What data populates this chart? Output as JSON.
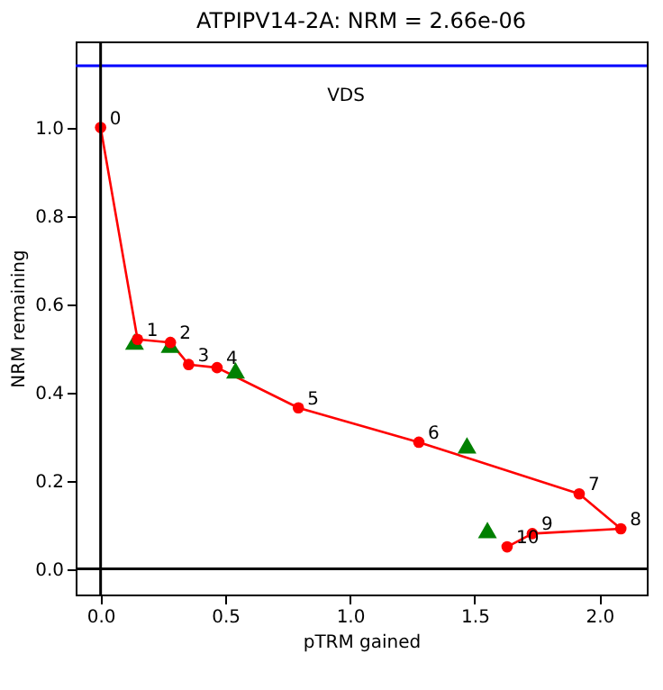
{
  "chart_data": {
    "type": "line",
    "title": "ATPIPV14-2A: NRM =  2.66e-06",
    "xlabel": "pTRM gained",
    "ylabel": "NRM remaining",
    "x": [
      0,
      0.148,
      0.28,
      0.353,
      0.467,
      0.793,
      1.276,
      1.919,
      2.086,
      1.731,
      1.63
    ],
    "series": [
      {
        "color": "#ff0000",
        "marker": "circle",
        "values": [
          1.0,
          0.52,
          0.513,
          0.463,
          0.456,
          0.365,
          0.287,
          0.17,
          0.091,
          0.08,
          0.05
        ]
      },
      {
        "type": "scatter",
        "color": "#008000",
        "marker": "triangle",
        "x": [
          0.136,
          0.279,
          0.541,
          1.469,
          1.551
        ],
        "values": [
          0.515,
          0.508,
          0.45,
          0.28,
          0.088
        ]
      }
    ],
    "xlim": [
      -0.1,
      2.19
    ],
    "ylim": [
      -0.058,
      1.195
    ],
    "xticks": [
      {
        "value": 0,
        "label": "0.0"
      },
      {
        "value": 0.5,
        "label": "0.5"
      },
      {
        "value": 1,
        "label": "1.0"
      },
      {
        "value": 1.5,
        "label": "1.5"
      },
      {
        "value": 2,
        "label": "2.0"
      }
    ],
    "yticks": [
      {
        "value": 0,
        "label": "0.0"
      },
      {
        "value": 0.2,
        "label": "0.2"
      },
      {
        "value": 0.4,
        "label": "0.4"
      },
      {
        "value": 0.6,
        "label": "0.6"
      },
      {
        "value": 0.8,
        "label": "0.8"
      },
      {
        "value": 1,
        "label": "1.0"
      }
    ],
    "ref_lines": [
      {
        "axis": "y",
        "value": 1.14,
        "color": "#0000ff"
      },
      {
        "axis": "x",
        "value": 0,
        "color": "#000000"
      },
      {
        "axis": "y",
        "value": 0,
        "color": "#000000"
      }
    ],
    "annotations": [
      "VDS",
      {
        "text": "0",
        "x": 0,
        "y": 1.0
      },
      {
        "text": "1",
        "x": 0.148,
        "y": 0.52
      },
      {
        "text": "2",
        "x": 0.28,
        "y": 0.513
      },
      {
        "text": "3",
        "x": 0.353,
        "y": 0.463
      },
      {
        "text": "4",
        "x": 0.467,
        "y": 0.456
      },
      {
        "text": "5",
        "x": 0.793,
        "y": 0.365
      },
      {
        "text": "6",
        "x": 1.276,
        "y": 0.287
      },
      {
        "text": "7",
        "x": 1.919,
        "y": 0.17
      },
      {
        "text": "8",
        "x": 2.086,
        "y": 0.091
      },
      {
        "text": "9",
        "x": 1.731,
        "y": 0.08
      },
      {
        "text": "10",
        "x": 1.63,
        "y": 0.05
      }
    ],
    "grid": false
  }
}
